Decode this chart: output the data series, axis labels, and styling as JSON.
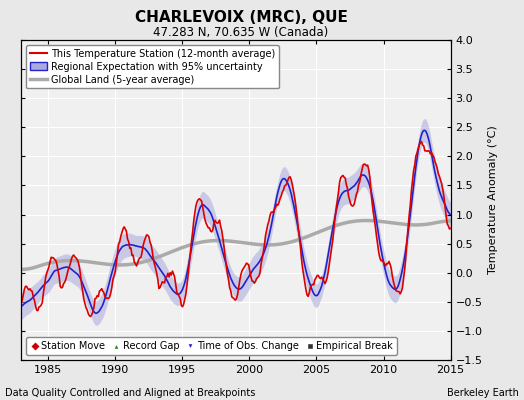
{
  "title": "CHARLEVOIX (MRC), QUE",
  "subtitle": "47.283 N, 70.635 W (Canada)",
  "xlabel_left": "Data Quality Controlled and Aligned at Breakpoints",
  "xlabel_right": "Berkeley Earth",
  "ylabel": "Temperature Anomaly (°C)",
  "xlim": [
    1983.0,
    2015.0
  ],
  "ylim": [
    -1.5,
    4.0
  ],
  "yticks": [
    -1.5,
    -1.0,
    -0.5,
    0.0,
    0.5,
    1.0,
    1.5,
    2.0,
    2.5,
    3.0,
    3.5,
    4.0
  ],
  "xticks": [
    1985,
    1990,
    1995,
    2000,
    2005,
    2010,
    2015
  ],
  "background_color": "#e8e8e8",
  "plot_background": "#f0f0f0",
  "grid_color": "#ffffff",
  "station_color": "#dd0000",
  "regional_color": "#2222cc",
  "regional_band_color": "#aaaadd",
  "global_color": "#aaaaaa",
  "legend_items": [
    {
      "label": "This Temperature Station (12-month average)",
      "color": "#dd0000",
      "lw": 1.2
    },
    {
      "label": "Regional Expectation with 95% uncertainty",
      "color": "#2222cc",
      "lw": 1.2
    },
    {
      "label": "Global Land (5-year average)",
      "color": "#aaaaaa",
      "lw": 2.5
    }
  ],
  "marker_items": [
    {
      "label": "Station Move",
      "marker": "D",
      "color": "#cc0000"
    },
    {
      "label": "Record Gap",
      "marker": "^",
      "color": "#228B22"
    },
    {
      "label": "Time of Obs. Change",
      "marker": "v",
      "color": "#2222cc"
    },
    {
      "label": "Empirical Break",
      "marker": "s",
      "color": "#333333"
    }
  ],
  "figsize": [
    5.24,
    4.0
  ],
  "dpi": 100
}
